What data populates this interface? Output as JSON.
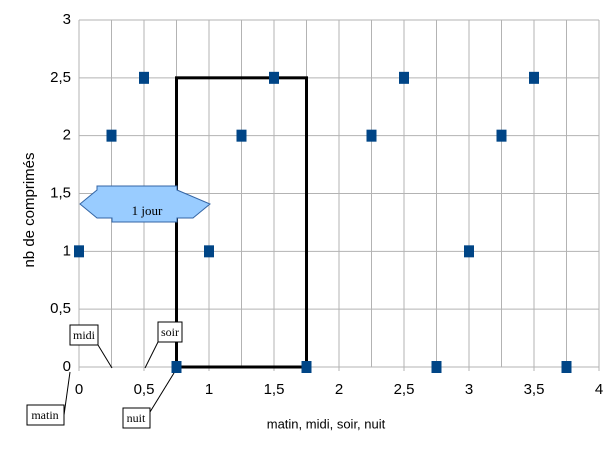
{
  "chart_data": {
    "type": "scatter",
    "x_label": "matin, midi, soir, nuit",
    "y_label": "nb de comprimés",
    "x": [
      0,
      0.25,
      0.5,
      0.75,
      1,
      1.25,
      1.5,
      1.75,
      2.25,
      2.5,
      2.75,
      3,
      3.25,
      3.5,
      3.75
    ],
    "values": [
      1,
      2,
      2.5,
      0,
      1,
      2,
      2.5,
      0,
      2,
      2.5,
      0,
      1,
      2,
      2.5,
      0
    ],
    "color": "#004586",
    "xlim": [
      0,
      4
    ],
    "ylim": [
      0,
      3
    ],
    "xticks": [
      0,
      {
        "value": 0.5,
        "label": "0,5"
      },
      1,
      {
        "value": 1.5,
        "label": "1,5"
      },
      2,
      {
        "value": 2.5,
        "label": "2,5"
      },
      3,
      {
        "value": 3.5,
        "label": "3,5"
      },
      4
    ],
    "yticks": [
      0,
      {
        "value": 0.5,
        "label": "0,5"
      },
      1,
      {
        "value": 1.5,
        "label": "1,5"
      },
      2,
      {
        "value": 2.5,
        "label": "2,5"
      },
      3
    ],
    "xgrid": [
      0,
      0.25,
      0.5,
      0.75,
      1,
      1.25,
      1.5,
      1.75,
      2,
      2.25,
      2.5,
      2.75,
      3,
      3.25,
      3.5,
      3.75,
      4
    ],
    "grid": true,
    "highlight_box": {
      "x": [
        0.75,
        1.75
      ],
      "y": [
        0,
        2.5
      ]
    },
    "annotations": {
      "arrow": "1 jour",
      "matin": "matin",
      "midi": "midi",
      "soir": "soir",
      "nuit": "nuit"
    }
  }
}
